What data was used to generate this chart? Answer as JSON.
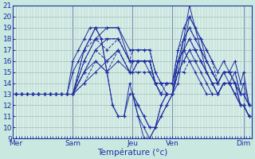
{
  "background_color": "#c8e8e0",
  "plot_bg": "#d8eee8",
  "grid_color": "#a0c0b8",
  "line_color": "#2030a0",
  "xlabel": "Température (°c)",
  "ylim": [
    9,
    21
  ],
  "xlim": [
    0,
    168
  ],
  "yticks": [
    9,
    10,
    11,
    12,
    13,
    14,
    15,
    16,
    17,
    18,
    19,
    20,
    21
  ],
  "xtick_labels": [
    "Mer",
    "Sam",
    "Jeu",
    "Ven",
    "Dim"
  ],
  "xtick_positions": [
    2,
    42,
    84,
    112,
    162
  ],
  "series": [
    {
      "x": [
        2,
        6,
        10,
        14,
        18,
        22,
        26,
        30,
        34,
        38,
        42,
        50,
        58,
        66,
        74,
        82,
        84,
        88,
        92,
        96,
        100,
        104,
        108,
        112,
        116,
        120,
        124,
        128,
        132,
        136,
        140,
        144,
        148,
        152,
        156,
        160,
        162,
        166
      ],
      "y": [
        13,
        13,
        13,
        13,
        13,
        13,
        13,
        13,
        13,
        13,
        13,
        15,
        16,
        15,
        16,
        15,
        15,
        16,
        16,
        16,
        14,
        13,
        13,
        13,
        16,
        17,
        16,
        15,
        14,
        13,
        13,
        13,
        14,
        14,
        13,
        12,
        12,
        11
      ],
      "style": "-"
    },
    {
      "x": [
        2,
        6,
        10,
        14,
        18,
        22,
        26,
        30,
        34,
        38,
        42,
        50,
        58,
        66,
        74,
        82,
        84,
        88,
        92,
        96,
        100,
        104,
        108,
        112,
        116,
        120,
        124,
        128,
        132,
        136,
        140,
        144,
        148,
        152,
        156,
        160,
        162,
        166
      ],
      "y": [
        13,
        13,
        13,
        13,
        13,
        13,
        13,
        13,
        13,
        13,
        13,
        14,
        15,
        16,
        17,
        15,
        16,
        16,
        16,
        15,
        14,
        13,
        13,
        13,
        15,
        16,
        17,
        16,
        15,
        14,
        13,
        13,
        14,
        14,
        13,
        12,
        12,
        11
      ],
      "style": "-"
    },
    {
      "x": [
        2,
        6,
        10,
        14,
        18,
        22,
        26,
        30,
        34,
        38,
        42,
        50,
        58,
        66,
        74,
        82,
        84,
        88,
        92,
        96,
        100,
        104,
        108,
        112,
        116,
        120,
        124,
        128,
        132,
        136,
        140,
        144,
        148,
        152,
        156,
        160,
        162,
        166
      ],
      "y": [
        13,
        13,
        13,
        13,
        13,
        13,
        13,
        13,
        13,
        13,
        13,
        15,
        17,
        18,
        18,
        16,
        16,
        16,
        16,
        16,
        14,
        14,
        13,
        13,
        16,
        17,
        18,
        17,
        16,
        15,
        14,
        14,
        15,
        14,
        13,
        12,
        12,
        11
      ],
      "style": "-"
    },
    {
      "x": [
        2,
        6,
        10,
        14,
        18,
        22,
        26,
        30,
        34,
        38,
        42,
        50,
        58,
        66,
        74,
        82,
        84,
        88,
        92,
        96,
        100,
        104,
        108,
        112,
        116,
        120,
        124,
        128,
        132,
        136,
        140,
        144,
        148,
        152,
        156,
        160,
        162,
        166
      ],
      "y": [
        13,
        13,
        13,
        13,
        13,
        13,
        13,
        13,
        13,
        13,
        13,
        16,
        18,
        19,
        19,
        16,
        16,
        16,
        16,
        16,
        14,
        14,
        14,
        14,
        16,
        18,
        19,
        18,
        17,
        16,
        15,
        14,
        15,
        15,
        14,
        12,
        12,
        11
      ],
      "style": "-"
    },
    {
      "x": [
        2,
        6,
        10,
        14,
        18,
        22,
        26,
        30,
        34,
        38,
        42,
        50,
        58,
        66,
        74,
        82,
        84,
        88,
        92,
        96,
        100,
        104,
        108,
        112,
        116,
        120,
        124,
        128,
        132,
        136,
        140,
        144,
        148,
        152,
        156,
        160,
        162,
        166
      ],
      "y": [
        13,
        13,
        13,
        13,
        13,
        13,
        13,
        13,
        13,
        13,
        13,
        17,
        19,
        19,
        19,
        17,
        17,
        17,
        17,
        17,
        15,
        14,
        14,
        14,
        17,
        19,
        20,
        19,
        18,
        17,
        16,
        15,
        16,
        15,
        14,
        12,
        12,
        11
      ],
      "style": "-"
    },
    {
      "x": [
        2,
        6,
        10,
        14,
        18,
        22,
        26,
        30,
        34,
        38,
        42,
        50,
        58,
        66,
        74,
        82,
        84,
        88,
        92,
        96,
        100,
        104,
        108,
        112,
        116,
        120,
        124,
        128,
        132,
        136,
        140,
        144,
        148,
        152,
        156,
        160,
        162,
        166
      ],
      "y": [
        13,
        13,
        13,
        13,
        13,
        13,
        13,
        13,
        13,
        13,
        13,
        14,
        16,
        15,
        17,
        15,
        15,
        15,
        15,
        15,
        14,
        13,
        13,
        13,
        15,
        15,
        16,
        16,
        16,
        15,
        14,
        13,
        14,
        14,
        14,
        13,
        13,
        12
      ],
      "style": "--"
    },
    {
      "x": [
        2,
        6,
        10,
        14,
        18,
        22,
        26,
        30,
        34,
        38,
        42,
        50,
        58,
        66,
        74,
        82,
        84,
        88,
        92,
        96,
        100,
        104,
        108,
        112,
        116,
        120,
        124,
        128,
        132,
        136,
        140,
        144,
        148,
        152,
        156,
        160,
        162,
        166
      ],
      "y": [
        13,
        13,
        13,
        13,
        13,
        13,
        13,
        13,
        13,
        13,
        13,
        15,
        17,
        16,
        17,
        15,
        15,
        16,
        16,
        16,
        14,
        13,
        13,
        13,
        16,
        16,
        17,
        17,
        16,
        15,
        14,
        13,
        14,
        14,
        14,
        13,
        13,
        12
      ],
      "style": "--"
    },
    {
      "x": [
        2,
        6,
        10,
        14,
        18,
        22,
        26,
        30,
        34,
        38,
        42,
        50,
        58,
        66,
        74,
        82,
        84,
        88,
        92,
        96,
        100,
        104,
        108,
        112,
        116,
        120,
        124,
        128,
        132,
        136,
        140,
        144,
        148,
        152,
        156,
        160,
        162,
        166
      ],
      "y": [
        13,
        13,
        13,
        13,
        13,
        13,
        13,
        13,
        13,
        13,
        13,
        16,
        18,
        17,
        18,
        16,
        16,
        16,
        16,
        16,
        14,
        13,
        14,
        14,
        16,
        17,
        18,
        17,
        17,
        16,
        15,
        14,
        15,
        15,
        14,
        13,
        13,
        12
      ],
      "style": "--"
    },
    {
      "x": [
        2,
        6,
        10,
        14,
        18,
        22,
        26,
        30,
        34,
        38,
        42,
        50,
        58,
        66,
        74,
        82,
        84,
        88,
        92,
        96,
        100,
        104,
        108,
        112,
        116,
        120,
        124,
        128,
        132,
        136,
        140,
        144,
        148,
        152,
        156,
        160,
        162,
        166
      ],
      "y": [
        13,
        13,
        13,
        13,
        13,
        13,
        13,
        13,
        13,
        13,
        13,
        17,
        18,
        18,
        18,
        16,
        17,
        17,
        17,
        17,
        15,
        14,
        14,
        14,
        17,
        18,
        19,
        18,
        18,
        17,
        16,
        14,
        15,
        15,
        15,
        13,
        13,
        12
      ],
      "style": "--"
    },
    {
      "x": [
        2,
        14,
        26,
        38,
        42,
        46,
        50,
        54,
        58,
        62,
        66,
        70,
        74,
        78,
        82,
        84,
        86,
        88,
        92,
        96,
        100,
        104,
        108
      ],
      "y": [
        13,
        13,
        13,
        13,
        15,
        16,
        17,
        18,
        19,
        18,
        15,
        12,
        11,
        11,
        13,
        13,
        12,
        11,
        10,
        9,
        10,
        12,
        13
      ],
      "style": "-"
    },
    {
      "x": [
        84,
        88,
        92,
        96,
        100,
        104,
        108,
        112,
        116,
        120,
        124,
        128,
        132,
        136,
        140,
        144,
        148,
        152,
        156,
        160,
        162,
        166
      ],
      "y": [
        13,
        12,
        11,
        10,
        10,
        11,
        12,
        13,
        14,
        17,
        20,
        19,
        17,
        15,
        14,
        13,
        14,
        14,
        15,
        13,
        14,
        12
      ],
      "style": "-"
    },
    {
      "x": [
        2,
        14,
        26,
        38,
        42,
        46,
        50,
        54,
        58,
        62,
        66,
        70,
        74,
        78,
        82,
        84,
        86,
        88,
        92,
        96,
        100,
        104,
        108
      ],
      "y": [
        13,
        13,
        13,
        13,
        16,
        17,
        18,
        19,
        19,
        18,
        15,
        12,
        11,
        11,
        14,
        13,
        12,
        11,
        9,
        9,
        10,
        12,
        13
      ],
      "style": "-"
    },
    {
      "x": [
        84,
        88,
        92,
        96,
        100,
        104,
        108,
        112,
        116,
        120,
        124,
        128,
        132,
        136,
        140,
        144,
        148,
        152,
        156,
        160,
        162,
        166
      ],
      "y": [
        13,
        12,
        11,
        10,
        10,
        11,
        12,
        13,
        15,
        18,
        21,
        19,
        18,
        16,
        15,
        14,
        15,
        15,
        16,
        14,
        15,
        12
      ],
      "style": "-"
    }
  ]
}
